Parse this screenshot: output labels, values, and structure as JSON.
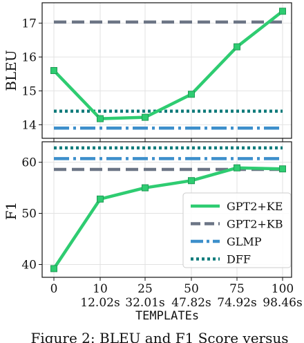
{
  "chart_data": [
    {
      "type": "line",
      "ylabel": "BLEU",
      "ylim": [
        13.6,
        17.6
      ],
      "yticks": [
        14,
        15,
        16,
        17
      ],
      "x": [
        0,
        10,
        25,
        50,
        75,
        100
      ],
      "grid": true,
      "series": [
        {
          "name": "GPT2+KE",
          "color": "#2ecc71",
          "style": "solid-marker",
          "values": [
            15.6,
            14.18,
            14.22,
            14.9,
            16.3,
            17.35
          ]
        },
        {
          "name": "GPT2+KB",
          "color": "#6c7585",
          "style": "dashed",
          "values": [
            17.03,
            17.03,
            17.03,
            17.03,
            17.03,
            17.03
          ]
        },
        {
          "name": "GLMP",
          "color": "#3d8fcb",
          "style": "dashdot",
          "values": [
            13.9,
            13.9,
            13.9,
            13.9,
            13.9,
            13.9
          ]
        },
        {
          "name": "DFF",
          "color": "#0f7b7b",
          "style": "dotted",
          "values": [
            14.4,
            14.4,
            14.4,
            14.4,
            14.4,
            14.4
          ]
        }
      ]
    },
    {
      "type": "line",
      "ylabel": "F1",
      "ylim": [
        37.5,
        64
      ],
      "yticks": [
        40,
        50,
        60
      ],
      "x": [
        0,
        10,
        25,
        50,
        75,
        100
      ],
      "xticks": [
        "0",
        "10",
        "25",
        "50",
        "75",
        "100"
      ],
      "xticks_secondary": [
        "12.02s",
        "32.01s",
        "47.82s",
        "74.92s",
        "98.46s"
      ],
      "xlabel": "TEMPLATEs",
      "grid": true,
      "legend_position": "lower-right",
      "series": [
        {
          "name": "GPT2+KE",
          "color": "#2ecc71",
          "style": "solid-marker",
          "values": [
            39.2,
            52.8,
            55.0,
            56.4,
            58.9,
            58.7
          ]
        },
        {
          "name": "GPT2+KB",
          "color": "#6c7585",
          "style": "dashed",
          "values": [
            58.6,
            58.6,
            58.6,
            58.6,
            58.6,
            58.6
          ]
        },
        {
          "name": "GLMP",
          "color": "#3d8fcb",
          "style": "dashdot",
          "values": [
            60.7,
            60.7,
            60.7,
            60.7,
            60.7,
            60.7
          ]
        },
        {
          "name": "DFF",
          "color": "#0f7b7b",
          "style": "dotted",
          "values": [
            62.8,
            62.8,
            62.8,
            62.8,
            62.8,
            62.8
          ]
        }
      ]
    }
  ],
  "legend": [
    "GPT2+KE",
    "GPT2+KB",
    "GLMP",
    "DFF"
  ],
  "caption_fragment": "Figure 2:  BLEU and F1 Score versus"
}
